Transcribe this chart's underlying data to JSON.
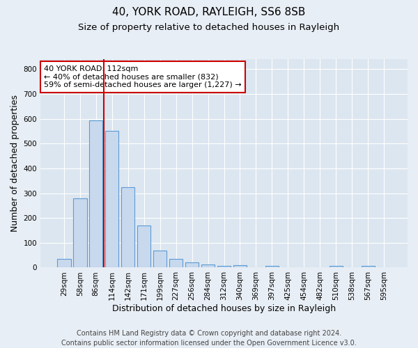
{
  "title1": "40, YORK ROAD, RAYLEIGH, SS6 8SB",
  "title2": "Size of property relative to detached houses in Rayleigh",
  "xlabel": "Distribution of detached houses by size in Rayleigh",
  "ylabel": "Number of detached properties",
  "bar_labels": [
    "29sqm",
    "58sqm",
    "86sqm",
    "114sqm",
    "142sqm",
    "171sqm",
    "199sqm",
    "227sqm",
    "256sqm",
    "284sqm",
    "312sqm",
    "340sqm",
    "369sqm",
    "397sqm",
    "425sqm",
    "454sqm",
    "482sqm",
    "510sqm",
    "538sqm",
    "567sqm",
    "595sqm"
  ],
  "bar_values": [
    35,
    280,
    593,
    550,
    325,
    170,
    68,
    35,
    20,
    12,
    8,
    10,
    0,
    8,
    0,
    0,
    0,
    8,
    0,
    8,
    0
  ],
  "bar_color": "#c8d9ee",
  "bar_edge_color": "#5b9bd5",
  "vline_x_index": 3,
  "vline_color": "#cc0000",
  "annotation_text": "40 YORK ROAD: 112sqm\n← 40% of detached houses are smaller (832)\n59% of semi-detached houses are larger (1,227) →",
  "annotation_box_color": "#ffffff",
  "annotation_box_edge": "#cc0000",
  "ylim": [
    0,
    840
  ],
  "yticks": [
    0,
    100,
    200,
    300,
    400,
    500,
    600,
    700,
    800
  ],
  "bg_color": "#e8eef5",
  "plot_bg_color": "#dce6f0",
  "footer": "Contains HM Land Registry data © Crown copyright and database right 2024.\nContains public sector information licensed under the Open Government Licence v3.0.",
  "title1_fontsize": 11,
  "title2_fontsize": 9.5,
  "xlabel_fontsize": 9,
  "ylabel_fontsize": 9,
  "annotation_fontsize": 8,
  "footer_fontsize": 7,
  "tick_fontsize": 7.5
}
